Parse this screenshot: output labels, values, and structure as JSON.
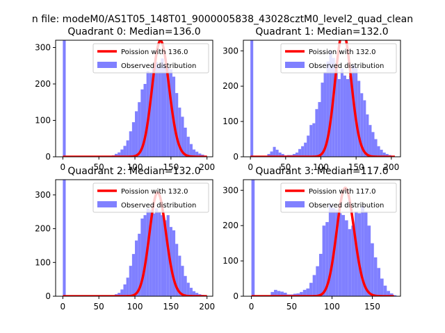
{
  "suptitle": "n file: modeM0/AS1T05_148T01_9000005838_43028cztM0_level2_quad_clean",
  "colors": {
    "hist": "#8080ff",
    "poisson": "#ff0000",
    "frame": "#000000"
  },
  "chart_data": [
    {
      "type": "bar",
      "title": "Quadrant 0: Median=136.0",
      "median": 136.0,
      "xlim": [
        -10,
        208
      ],
      "ylim": [
        0,
        320
      ],
      "xticks": [
        0,
        50,
        100,
        150,
        200
      ],
      "yticks": [
        0,
        100,
        200,
        300
      ],
      "legend": {
        "position": "top-right",
        "line_label": "Poission with 136.0",
        "bar_label": "Observed distribution"
      },
      "bin_width": 4,
      "bins": [
        [
          0,
          320
        ],
        [
          68,
          4
        ],
        [
          72,
          8
        ],
        [
          76,
          12
        ],
        [
          80,
          20
        ],
        [
          84,
          30
        ],
        [
          88,
          45
        ],
        [
          92,
          70
        ],
        [
          96,
          95
        ],
        [
          100,
          125
        ],
        [
          104,
          150
        ],
        [
          108,
          185
        ],
        [
          112,
          200
        ],
        [
          116,
          235
        ],
        [
          120,
          230
        ],
        [
          124,
          245
        ],
        [
          128,
          260
        ],
        [
          132,
          250
        ],
        [
          136,
          270
        ],
        [
          140,
          255
        ],
        [
          144,
          245
        ],
        [
          148,
          240
        ],
        [
          152,
          220
        ],
        [
          156,
          175
        ],
        [
          160,
          135
        ],
        [
          164,
          110
        ],
        [
          168,
          80
        ],
        [
          172,
          55
        ],
        [
          176,
          35
        ],
        [
          180,
          20
        ],
        [
          184,
          14
        ],
        [
          188,
          9
        ],
        [
          192,
          6
        ],
        [
          196,
          3
        ]
      ]
    },
    {
      "type": "bar",
      "title": "Quadrant 1: Median=132.0",
      "median": 132.0,
      "xlim": [
        -10,
        213
      ],
      "ylim": [
        0,
        330
      ],
      "xticks": [
        0,
        50,
        100,
        150,
        200
      ],
      "yticks": [
        0,
        100,
        200,
        300
      ],
      "legend": {
        "position": "top-right",
        "line_label": "Poission with 132.0",
        "bar_label": "Observed distribution"
      },
      "bin_width": 4,
      "bins": [
        [
          0,
          330
        ],
        [
          24,
          8
        ],
        [
          28,
          15
        ],
        [
          32,
          28
        ],
        [
          36,
          20
        ],
        [
          40,
          12
        ],
        [
          44,
          8
        ],
        [
          48,
          4
        ],
        [
          52,
          5
        ],
        [
          56,
          5
        ],
        [
          60,
          8
        ],
        [
          64,
          12
        ],
        [
          68,
          22
        ],
        [
          72,
          30
        ],
        [
          76,
          40
        ],
        [
          80,
          60
        ],
        [
          84,
          90
        ],
        [
          88,
          95
        ],
        [
          92,
          135
        ],
        [
          96,
          155
        ],
        [
          100,
          210
        ],
        [
          104,
          240
        ],
        [
          108,
          270
        ],
        [
          112,
          300
        ],
        [
          116,
          280
        ],
        [
          120,
          245
        ],
        [
          124,
          220
        ],
        [
          128,
          250
        ],
        [
          132,
          230
        ],
        [
          136,
          220
        ],
        [
          140,
          230
        ],
        [
          144,
          260
        ],
        [
          148,
          250
        ],
        [
          152,
          215
        ],
        [
          156,
          180
        ],
        [
          160,
          160
        ],
        [
          164,
          120
        ],
        [
          168,
          90
        ],
        [
          172,
          70
        ],
        [
          176,
          50
        ],
        [
          180,
          30
        ],
        [
          184,
          20
        ],
        [
          188,
          12
        ],
        [
          192,
          8
        ],
        [
          196,
          5
        ],
        [
          200,
          3
        ]
      ]
    },
    {
      "type": "bar",
      "title": "Quadrant 2: Median=132.0",
      "median": 132.0,
      "xlim": [
        -10,
        208
      ],
      "ylim": [
        0,
        345
      ],
      "xticks": [
        0,
        50,
        100,
        150,
        200
      ],
      "yticks": [
        0,
        100,
        200,
        300
      ],
      "legend": {
        "position": "top-right",
        "line_label": "Poission with 132.0",
        "bar_label": "Observed distribution"
      },
      "bin_width": 4,
      "bins": [
        [
          0,
          345
        ],
        [
          68,
          3
        ],
        [
          72,
          6
        ],
        [
          76,
          10
        ],
        [
          80,
          20
        ],
        [
          84,
          35
        ],
        [
          88,
          55
        ],
        [
          92,
          90
        ],
        [
          96,
          125
        ],
        [
          100,
          165
        ],
        [
          104,
          185
        ],
        [
          108,
          230
        ],
        [
          112,
          240
        ],
        [
          116,
          260
        ],
        [
          120,
          255
        ],
        [
          124,
          245
        ],
        [
          128,
          260
        ],
        [
          132,
          250
        ],
        [
          136,
          240
        ],
        [
          140,
          225
        ],
        [
          144,
          240
        ],
        [
          148,
          205
        ],
        [
          152,
          195
        ],
        [
          156,
          155
        ],
        [
          160,
          120
        ],
        [
          164,
          90
        ],
        [
          168,
          60
        ],
        [
          172,
          40
        ],
        [
          176,
          25
        ],
        [
          180,
          15
        ],
        [
          184,
          10
        ],
        [
          188,
          6
        ],
        [
          192,
          4
        ],
        [
          196,
          2
        ]
      ]
    },
    {
      "type": "bar",
      "title": "Quadrant 3: Median=117.0",
      "median": 117.0,
      "xlim": [
        -10,
        185
      ],
      "ylim": [
        0,
        330
      ],
      "xticks": [
        0,
        50,
        100,
        150
      ],
      "yticks": [
        0,
        100,
        200,
        300
      ],
      "legend": {
        "position": "top-right",
        "line_label": "Poission with 117.0",
        "bar_label": "Observed distribution"
      },
      "bin_width": 4,
      "bins": [
        [
          0,
          330
        ],
        [
          24,
          12
        ],
        [
          28,
          18
        ],
        [
          32,
          15
        ],
        [
          36,
          13
        ],
        [
          40,
          10
        ],
        [
          44,
          5
        ],
        [
          48,
          5
        ],
        [
          52,
          7
        ],
        [
          56,
          8
        ],
        [
          60,
          12
        ],
        [
          64,
          18
        ],
        [
          68,
          22
        ],
        [
          72,
          38
        ],
        [
          76,
          60
        ],
        [
          80,
          85
        ],
        [
          84,
          120
        ],
        [
          88,
          200
        ],
        [
          92,
          210
        ],
        [
          96,
          260
        ],
        [
          100,
          250
        ],
        [
          104,
          245
        ],
        [
          108,
          235
        ],
        [
          112,
          230
        ],
        [
          116,
          215
        ],
        [
          120,
          190
        ],
        [
          124,
          200
        ],
        [
          128,
          240
        ],
        [
          132,
          235
        ],
        [
          136,
          255
        ],
        [
          140,
          240
        ],
        [
          144,
          200
        ],
        [
          148,
          150
        ],
        [
          152,
          110
        ],
        [
          156,
          80
        ],
        [
          160,
          50
        ],
        [
          164,
          30
        ],
        [
          168,
          15
        ],
        [
          172,
          8
        ],
        [
          176,
          3
        ]
      ]
    }
  ]
}
